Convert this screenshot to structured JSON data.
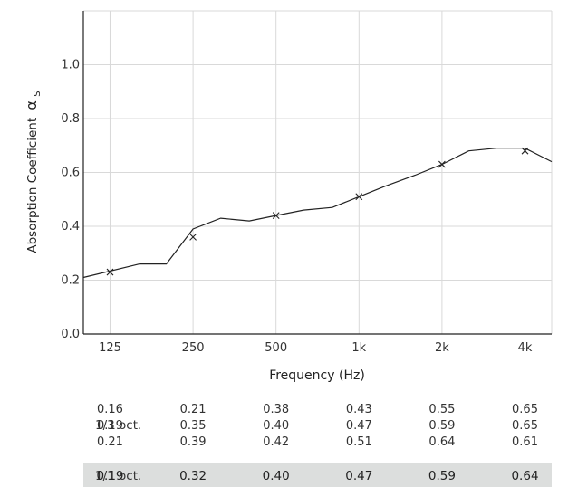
{
  "chart_data": {
    "type": "line",
    "title": "",
    "xlabel": "Frequency (Hz)",
    "ylabel": "Absorption Coefficient",
    "ylabel_symbol": "α",
    "ylabel_subscript": "S",
    "ylim": [
      0.0,
      1.2
    ],
    "yticks": [
      0.0,
      0.2,
      0.4,
      0.6,
      0.8,
      1.0
    ],
    "ytick_labels": [
      "0.0",
      "0.2",
      "0.4",
      "0.6",
      "0.8",
      "1.0"
    ],
    "xscale": "log",
    "xlim": [
      100,
      5000
    ],
    "xticks": [
      125,
      250,
      500,
      1000,
      2000,
      4000
    ],
    "xtick_labels": [
      "125",
      "250",
      "500",
      "1k",
      "2k",
      "4k"
    ],
    "grid": true,
    "series": [
      {
        "style": "line",
        "x": [
          100,
          160,
          200,
          250,
          315,
          400,
          500,
          630,
          800,
          1000,
          1250,
          1600,
          2000,
          2500,
          3150,
          4000,
          5000
        ],
        "values": [
          0.21,
          0.26,
          0.26,
          0.39,
          0.43,
          0.42,
          0.44,
          0.46,
          0.47,
          0.51,
          0.55,
          0.59,
          0.63,
          0.68,
          0.69,
          0.69,
          0.64
        ]
      },
      {
        "style": "markers",
        "marker": "x",
        "x": [
          125,
          250,
          500,
          1000,
          2000,
          4000
        ],
        "values": [
          0.23,
          0.36,
          0.44,
          0.51,
          0.63,
          0.68
        ]
      }
    ],
    "table": {
      "third_octave_label": "1/3 oct.",
      "third_octave_columns": [
        [
          "0.16",
          "0.19",
          "0.21"
        ],
        [
          "0.21",
          "0.35",
          "0.39"
        ],
        [
          "0.38",
          "0.40",
          "0.42"
        ],
        [
          "0.43",
          "0.47",
          "0.51"
        ],
        [
          "0.55",
          "0.59",
          "0.64"
        ],
        [
          "0.65",
          "0.65",
          "0.61"
        ]
      ],
      "octave_label": "1/1 oct.",
      "octave_values": [
        "0.19",
        "0.32",
        "0.40",
        "0.47",
        "0.59",
        "0.64"
      ]
    }
  },
  "colors": {
    "line": "#222222",
    "grid": "#d9d9d9",
    "axis": "#222222",
    "octave_row_bg": "#dcdedd"
  }
}
